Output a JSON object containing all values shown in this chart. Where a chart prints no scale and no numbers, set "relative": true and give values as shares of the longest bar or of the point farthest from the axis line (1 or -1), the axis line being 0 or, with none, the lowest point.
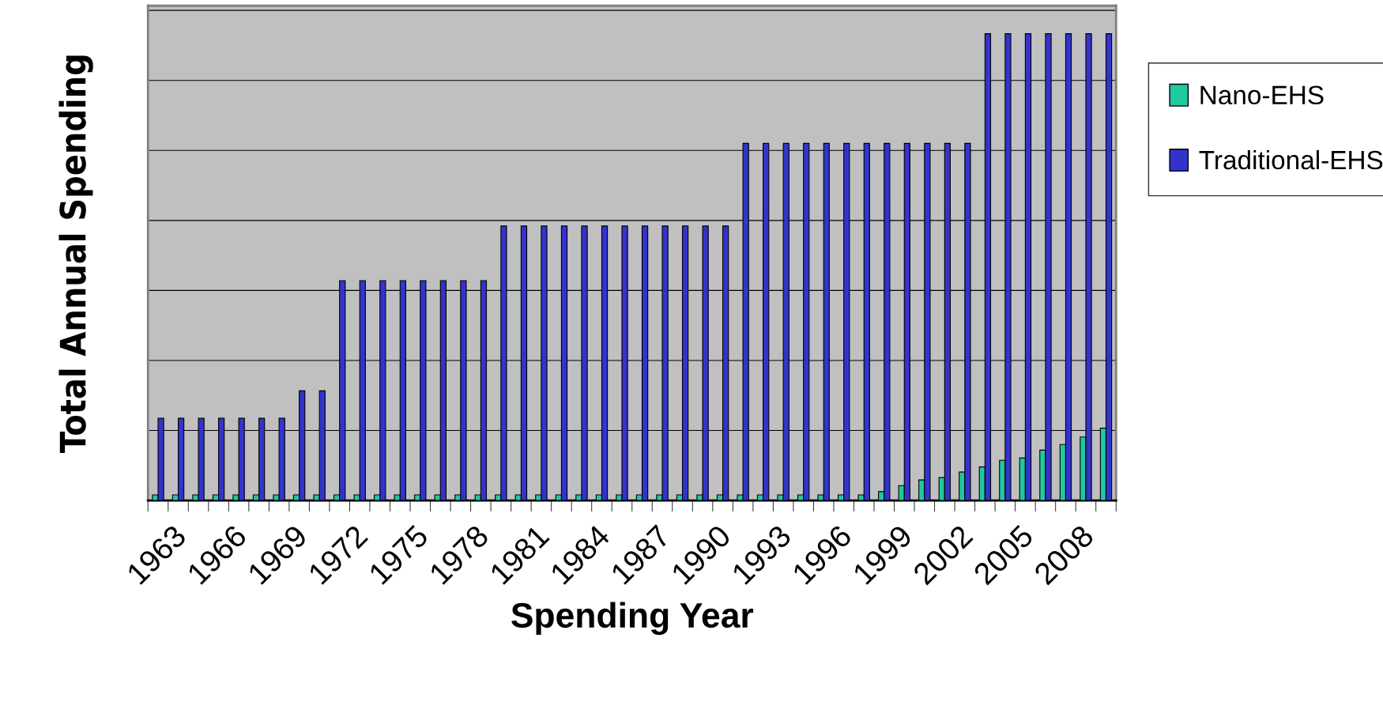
{
  "chart_data": {
    "type": "bar",
    "relative": true,
    "xlabel": "Spending Year",
    "ylabel": "Total Annual Spending",
    "categories": [
      "1963",
      null,
      null,
      "1966",
      null,
      null,
      "1969",
      null,
      null,
      "1972",
      null,
      null,
      "1975",
      null,
      null,
      "1978",
      null,
      null,
      "1981",
      null,
      null,
      "1984",
      null,
      null,
      "1987",
      null,
      null,
      "1990",
      null,
      null,
      "1993",
      null,
      null,
      "1996",
      null,
      null,
      "1999",
      null,
      null,
      "2002",
      null,
      null,
      "2005",
      null,
      null,
      "2008",
      null,
      null
    ],
    "series": [
      {
        "name": "Nano-EHS",
        "color": "#20c8a0",
        "values": [
          0.012,
          0.012,
          0.012,
          0.012,
          0.012,
          0.012,
          0.012,
          0.012,
          0.012,
          0.012,
          0.012,
          0.012,
          0.012,
          0.012,
          0.012,
          0.012,
          0.012,
          0.012,
          0.012,
          0.012,
          0.012,
          0.012,
          0.012,
          0.012,
          0.012,
          0.012,
          0.012,
          0.012,
          0.012,
          0.012,
          0.012,
          0.012,
          0.012,
          0.012,
          0.012,
          0.012,
          0.019,
          0.032,
          0.044,
          0.049,
          0.061,
          0.072,
          0.086,
          0.091,
          0.108,
          0.12,
          0.136,
          0.155
        ]
      },
      {
        "name": "Traditional-EHS",
        "color": "#3333cc",
        "values": [
          0.176,
          0.176,
          0.176,
          0.176,
          0.176,
          0.176,
          0.176,
          0.235,
          0.235,
          0.471,
          0.471,
          0.471,
          0.471,
          0.471,
          0.471,
          0.471,
          0.471,
          0.588,
          0.588,
          0.588,
          0.588,
          0.588,
          0.588,
          0.588,
          0.588,
          0.588,
          0.588,
          0.588,
          0.588,
          0.765,
          0.765,
          0.765,
          0.765,
          0.765,
          0.765,
          0.765,
          0.765,
          0.765,
          0.765,
          0.765,
          0.765,
          1,
          1,
          1,
          1,
          1,
          1,
          1
        ]
      }
    ],
    "grid": "y",
    "legend": "right"
  }
}
